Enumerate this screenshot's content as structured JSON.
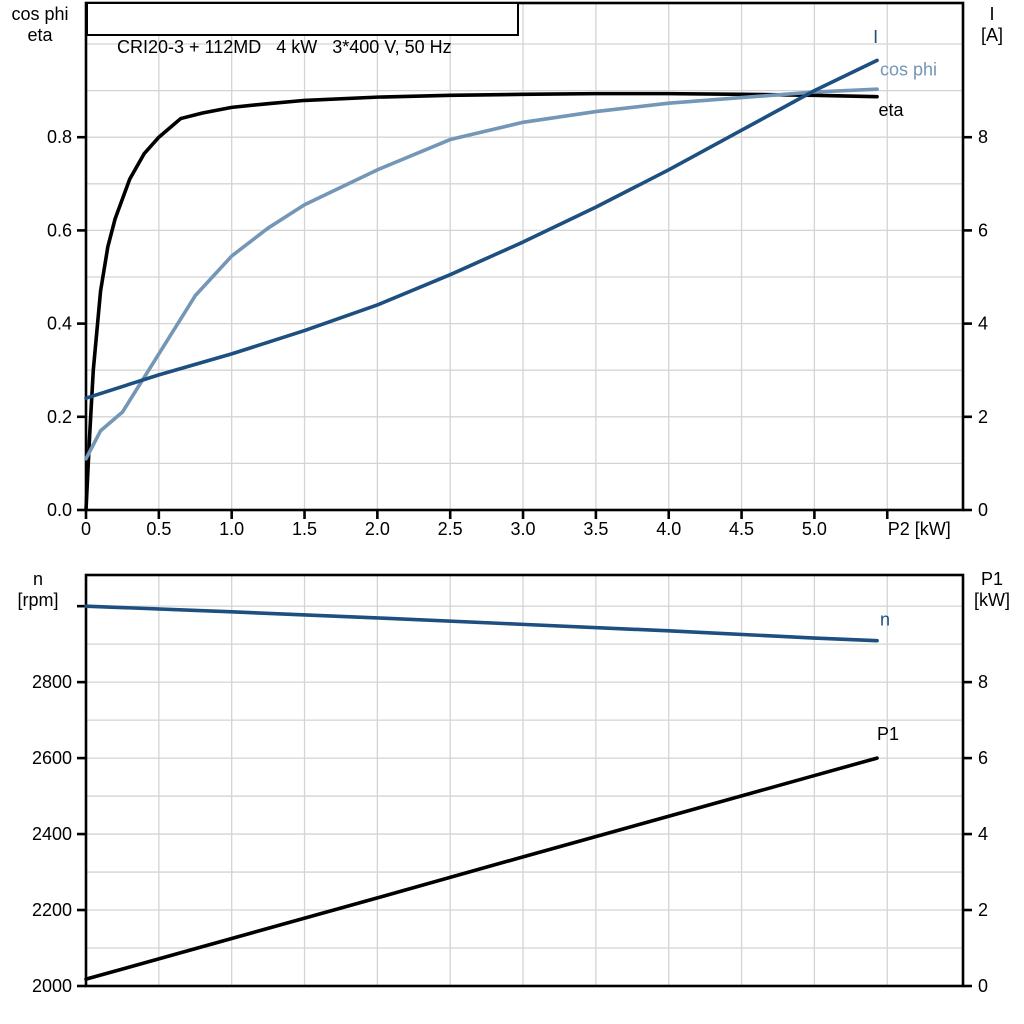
{
  "title": "CRI20-3 + 112MD   4 kW   3*400 V, 50 Hz",
  "colors": {
    "black": "#000000",
    "dark_blue": "#1d4f80",
    "light_blue": "#7496b7",
    "grid": "#d4d4d4",
    "background": "#ffffff"
  },
  "chart_data": [
    {
      "type": "line",
      "title": "CRI20-3 + 112MD   4 kW   3*400 V, 50 Hz",
      "grid": true,
      "legend_position": "end-of-curve-labels",
      "axes": {
        "x": {
          "label": "P2 [kW]",
          "label_x": 5.72,
          "min": 0,
          "max": 6.02,
          "grid_step": 0.5,
          "grid_max": 5.5,
          "ticks": [
            {
              "v": 0,
              "label": "0"
            },
            {
              "v": 0.5,
              "label": "0.5"
            },
            {
              "v": 1,
              "label": "1.0"
            },
            {
              "v": 1.5,
              "label": "1.5"
            },
            {
              "v": 2,
              "label": "2.0"
            },
            {
              "v": 2.5,
              "label": "2.5"
            },
            {
              "v": 3,
              "label": "3.0"
            },
            {
              "v": 3.5,
              "label": "3.5"
            },
            {
              "v": 4,
              "label": "4.0"
            },
            {
              "v": 4.5,
              "label": "4.5"
            },
            {
              "v": 5,
              "label": "5.0"
            },
            {
              "v": 5.5,
              "label": ""
            }
          ]
        },
        "left": {
          "label_lines": [
            "cos phi",
            "eta"
          ],
          "min": 0,
          "max": 1.088,
          "grid_step": 0.1,
          "grid_max": 1.0,
          "ticks": [
            {
              "v": 0.0,
              "label": "0.0"
            },
            {
              "v": 0.2,
              "label": "0.2"
            },
            {
              "v": 0.4,
              "label": "0.4"
            },
            {
              "v": 0.6,
              "label": "0.6"
            },
            {
              "v": 0.8,
              "label": "0.8"
            }
          ]
        },
        "right": {
          "label_lines": [
            "I",
            "[A]"
          ],
          "min": 0,
          "max": 10.88,
          "ticks": [
            {
              "v": 0,
              "label": "0"
            },
            {
              "v": 2,
              "label": "2"
            },
            {
              "v": 4,
              "label": "4"
            },
            {
              "v": 6,
              "label": "6"
            },
            {
              "v": 8,
              "label": "8"
            }
          ]
        }
      },
      "series": [
        {
          "name": "eta",
          "color": "black",
          "axis": "left",
          "x": [
            0,
            0.025,
            0.05,
            0.1,
            0.15,
            0.2,
            0.3,
            0.4,
            0.5,
            0.65,
            0.8,
            1.0,
            1.25,
            1.5,
            2.0,
            2.5,
            3.0,
            3.5,
            4.0,
            4.5,
            5.0,
            5.43
          ],
          "y": [
            0,
            0.16,
            0.3,
            0.47,
            0.565,
            0.625,
            0.71,
            0.765,
            0.8,
            0.84,
            0.852,
            0.864,
            0.872,
            0.879,
            0.886,
            0.89,
            0.892,
            0.8935,
            0.8935,
            0.892,
            0.89,
            0.887
          ],
          "label": {
            "text": "eta",
            "x": 5.44,
            "y": 0.858,
            "anchor": "start"
          }
        },
        {
          "name": "cos phi",
          "color": "light_blue",
          "axis": "left",
          "x": [
            0,
            0.1,
            0.25,
            0.5,
            0.75,
            1.0,
            1.25,
            1.5,
            2.0,
            2.5,
            3.0,
            3.5,
            4.0,
            4.5,
            5.0,
            5.43
          ],
          "y": [
            0.11,
            0.17,
            0.21,
            0.335,
            0.46,
            0.545,
            0.605,
            0.655,
            0.73,
            0.795,
            0.832,
            0.855,
            0.873,
            0.885,
            0.897,
            0.903
          ],
          "label": {
            "text": "cos phi",
            "x": 5.45,
            "y": 0.945,
            "anchor": "start"
          }
        },
        {
          "name": "I",
          "color": "dark_blue",
          "axis": "right",
          "x": [
            0,
            0.5,
            1.0,
            1.5,
            2.0,
            2.5,
            3.0,
            3.5,
            4.0,
            4.5,
            5.0,
            5.43
          ],
          "y": [
            2.4,
            2.9,
            3.35,
            3.85,
            4.4,
            5.05,
            5.75,
            6.5,
            7.3,
            8.15,
            9.0,
            9.65
          ],
          "label": {
            "text": "I",
            "x": 5.42,
            "y": 10.15,
            "anchor": "middle"
          }
        }
      ]
    },
    {
      "type": "line",
      "grid": true,
      "axes": {
        "x": {
          "label": "",
          "min": 0,
          "max": 6.02,
          "grid_step": 0.5,
          "grid_max": 5.5,
          "ticks": []
        },
        "left": {
          "label_lines": [
            "n",
            "[rpm]"
          ],
          "min": 2000,
          "max": 3082,
          "grid_step": 100,
          "grid_max": 3000,
          "ticks": [
            {
              "v": 2000,
              "label": "2000"
            },
            {
              "v": 2200,
              "label": "2200"
            },
            {
              "v": 2400,
              "label": "2400"
            },
            {
              "v": 2600,
              "label": "2600"
            },
            {
              "v": 2800,
              "label": "2800"
            },
            {
              "v": 3000,
              "label": ""
            }
          ]
        },
        "right": {
          "label_lines": [
            "P1",
            "[kW]"
          ],
          "min": 0,
          "max": 10.82,
          "ticks": [
            {
              "v": 0,
              "label": "0"
            },
            {
              "v": 2,
              "label": "2"
            },
            {
              "v": 4,
              "label": "4"
            },
            {
              "v": 6,
              "label": "6"
            },
            {
              "v": 8,
              "label": "8"
            }
          ]
        }
      },
      "series": [
        {
          "name": "n",
          "color": "dark_blue",
          "axis": "left",
          "x": [
            0,
            1,
            2,
            3,
            4,
            5,
            5.43
          ],
          "y": [
            3000,
            2985,
            2969,
            2952,
            2935,
            2916,
            2909
          ],
          "label": {
            "text": "n",
            "x": 5.45,
            "y": 2965,
            "anchor": "start"
          }
        },
        {
          "name": "P1",
          "color": "black",
          "axis": "right",
          "x": [
            0,
            1,
            2,
            3,
            4,
            5,
            5.43
          ],
          "y": [
            0.18,
            1.25,
            2.32,
            3.4,
            4.47,
            5.54,
            6.0
          ],
          "label": {
            "text": "P1",
            "x": 5.43,
            "y": 6.63,
            "anchor": "start"
          }
        }
      ]
    }
  ]
}
